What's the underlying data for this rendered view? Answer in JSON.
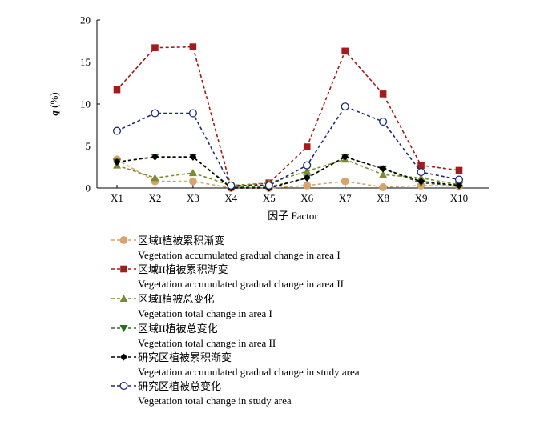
{
  "chart_data": {
    "type": "line",
    "ylabel": "q (%)",
    "ylabel_italic_part": "q",
    "ylabel_unit_part": " (%)",
    "xlabel": "因子 Factor",
    "ylim": [
      0,
      20
    ],
    "yticks": [
      0,
      5,
      10,
      15,
      20
    ],
    "categories": [
      "X1",
      "X2",
      "X3",
      "X4",
      "X5",
      "X6",
      "X7",
      "X8",
      "X9",
      "X10"
    ],
    "legend_position": "below",
    "series": [
      {
        "name": "区域I植被累积渐变",
        "name_en": "Vegetation accumulated gradual change in area I",
        "color": "#d9a36b",
        "marker": "circle-filled",
        "values": [
          3.4,
          0.8,
          0.8,
          0.0,
          0.0,
          0.3,
          0.8,
          0.1,
          0.3,
          0.2
        ]
      },
      {
        "name": "区域II植被累积渐变",
        "name_en": "Vegetation accumulated gradual change in area II",
        "color": "#a31b1b",
        "marker": "square-filled",
        "values": [
          11.7,
          16.7,
          16.8,
          0.1,
          0.6,
          4.9,
          16.3,
          11.2,
          2.7,
          2.1
        ]
      },
      {
        "name": "区域I植被总变化",
        "name_en": "Vegetation total change in area I",
        "color": "#7d8a2e",
        "marker": "triangle-up",
        "values": [
          2.7,
          1.2,
          1.8,
          0.3,
          0.6,
          2.0,
          3.4,
          1.6,
          1.2,
          0.4
        ]
      },
      {
        "name": "区域II植被总变化",
        "name_en": "Vegetation total change in area II",
        "color": "#2e6b1e",
        "marker": "triangle-down",
        "values": [
          3.1,
          3.7,
          3.7,
          0.1,
          0.1,
          1.2,
          3.7,
          2.3,
          0.6,
          0.3
        ]
      },
      {
        "name": "研究区植被累积渐变",
        "name_en": "Vegetation accumulated gradual change in study area",
        "color": "#000000",
        "marker": "diamond-filled",
        "values": [
          3.1,
          3.7,
          3.7,
          0.0,
          0.0,
          1.2,
          3.7,
          2.3,
          0.8,
          0.3
        ]
      },
      {
        "name": "研究区植被总变化",
        "name_en": "Vegetation total change in study area",
        "color": "#1d2a78",
        "marker": "circle-open",
        "values": [
          6.8,
          8.9,
          8.9,
          0.3,
          0.3,
          2.7,
          9.7,
          7.9,
          1.9,
          1.0
        ]
      }
    ]
  }
}
